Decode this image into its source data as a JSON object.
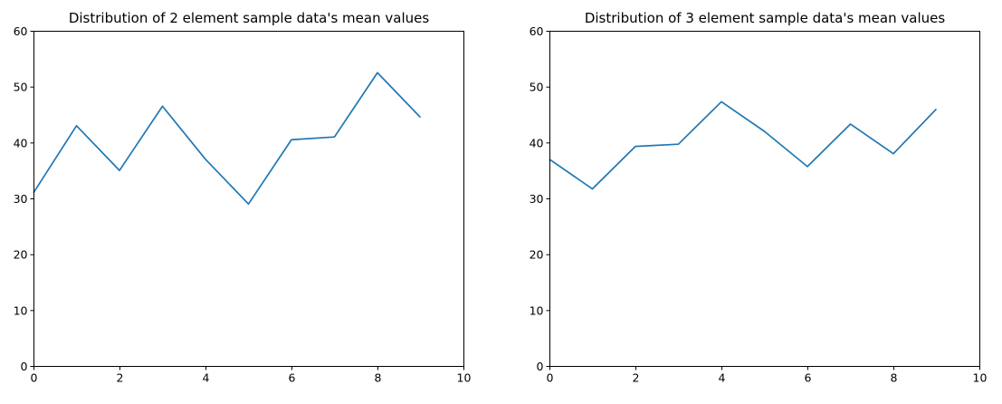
{
  "figure": {
    "background": "#ffffff"
  },
  "chart_data": [
    {
      "type": "line",
      "title": "Distribution of 2 element sample data's mean values",
      "xlabel": "",
      "ylabel": "",
      "xlim": [
        0,
        10
      ],
      "ylim": [
        0,
        60
      ],
      "xticks": [
        0,
        2,
        4,
        6,
        8,
        10
      ],
      "yticks": [
        0,
        10,
        20,
        30,
        40,
        50,
        60
      ],
      "grid": false,
      "series": [
        {
          "color": "#1f77b4",
          "x": [
            0,
            1,
            2,
            3,
            4,
            5,
            6,
            7,
            8,
            9
          ],
          "y": [
            31,
            43,
            35,
            46.5,
            37,
            29,
            40.5,
            41,
            52.5,
            44.5
          ]
        }
      ]
    },
    {
      "type": "line",
      "title": "Distribution of 3 element sample data's mean values",
      "xlabel": "",
      "ylabel": "",
      "xlim": [
        0,
        10
      ],
      "ylim": [
        0,
        60
      ],
      "xticks": [
        0,
        2,
        4,
        6,
        8,
        10
      ],
      "yticks": [
        0,
        10,
        20,
        30,
        40,
        50,
        60
      ],
      "grid": false,
      "series": [
        {
          "color": "#1f77b4",
          "x": [
            0,
            1,
            2,
            3,
            4,
            5,
            6,
            7,
            8,
            9
          ],
          "y": [
            37,
            31.7,
            39.3,
            39.7,
            47.3,
            42,
            35.7,
            43.3,
            38,
            46
          ]
        }
      ]
    }
  ]
}
